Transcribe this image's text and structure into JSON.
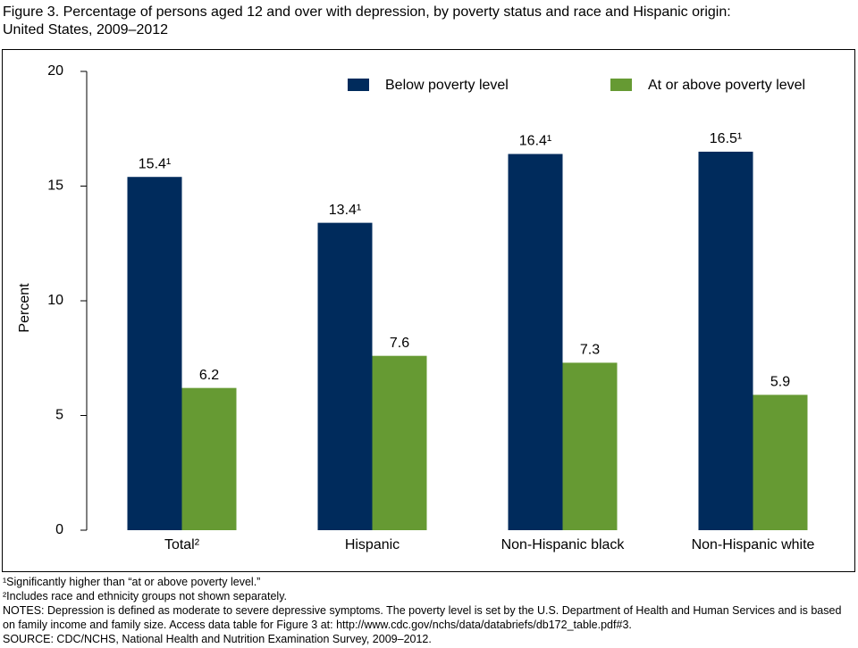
{
  "chart_data": {
    "type": "bar",
    "title": [
      "Figure 3. Percentage of persons aged 12 and over with depression, by poverty status and race and Hispanic origin:",
      "United States, 2009–2012"
    ],
    "ylabel": "Percent",
    "categories": [
      "Total²",
      "Hispanic",
      "Non-Hispanic black",
      "Non-Hispanic white"
    ],
    "series": [
      {
        "name": "Below poverty level",
        "color": "#002b5c",
        "values": [
          15.4,
          13.4,
          16.4,
          16.5
        ],
        "value_labels": [
          "15.4¹",
          "13.4¹",
          "16.4¹",
          "16.5¹"
        ]
      },
      {
        "name": "At or above poverty level",
        "color": "#669a33",
        "values": [
          6.2,
          7.6,
          7.3,
          5.9
        ]
      }
    ],
    "ylim": [
      0,
      20
    ],
    "yticks": [
      0,
      5,
      10,
      15,
      20
    ],
    "grid": false,
    "legend": "top-right",
    "notes": [
      "¹Significantly higher than “at or above poverty level.”",
      "²Includes race and ethnicity groups not shown separately.",
      "NOTES: Depression is defined as moderate to severe depressive symptoms. The poverty level is set by the U.S. Department of Health and Human Services and is based on family income and family size. Access data table for Figure 3 at: http://www.cdc.gov/nchs/data/databriefs/db172_table.pdf#3.",
      "SOURCE: CDC/NCHS, National Health and Nutrition Examination Survey, 2009–2012."
    ]
  }
}
